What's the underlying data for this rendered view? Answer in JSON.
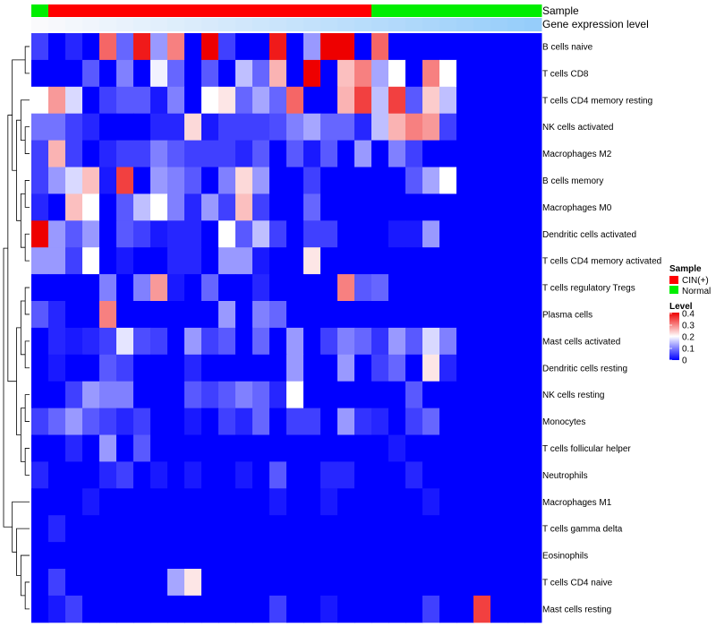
{
  "chart_data": {
    "type": "heatmap",
    "annotation_labels": [
      "Sample",
      "Gene expression level"
    ],
    "legend_sample": {
      "title": "Sample",
      "entries": [
        {
          "label": "CIN(+)",
          "color": "#ff0000"
        },
        {
          "label": "Normal",
          "color": "#00ee00"
        }
      ]
    },
    "legend_level": {
      "title": "Level",
      "ticks": [
        "0.4",
        "0.3",
        "0.2",
        "0.1",
        "0"
      ],
      "range": [
        0,
        0.4
      ],
      "colors": {
        "low": "#0000ff",
        "mid": "#ffffff",
        "high": "#ee0000"
      }
    },
    "sample_groups": [
      "Normal",
      "CIN(+)",
      "CIN(+)",
      "CIN(+)",
      "CIN(+)",
      "CIN(+)",
      "CIN(+)",
      "CIN(+)",
      "CIN(+)",
      "CIN(+)",
      "CIN(+)",
      "CIN(+)",
      "CIN(+)",
      "CIN(+)",
      "CIN(+)",
      "CIN(+)",
      "CIN(+)",
      "CIN(+)",
      "CIN(+)",
      "CIN(+)",
      "Normal",
      "Normal",
      "Normal",
      "Normal",
      "Normal",
      "Normal",
      "Normal",
      "Normal",
      "Normal",
      "Normal"
    ],
    "rows": [
      "B cells naive",
      "T cells CD8",
      "T cells CD4 memory resting",
      "NK cells activated",
      "Macrophages M2",
      "B cells memory",
      "Macrophages M0",
      "Dendritic cells activated",
      "T cells CD4 memory activated",
      "T cells regulatory  Tregs",
      "Plasma cells",
      "Mast cells activated",
      "Dendritic cells resting",
      "NK cells resting",
      "Monocytes",
      "T cells follicular helper",
      "Neutrophils",
      "Macrophages M1",
      "T cells gamma delta",
      "Eosinophils",
      "T cells CD4 naive",
      "Mast cells resting"
    ],
    "values": [
      [
        0.05,
        0.0,
        0.03,
        0.0,
        0.32,
        0.08,
        0.38,
        0.12,
        0.3,
        0.0,
        0.4,
        0.05,
        0.0,
        0.0,
        0.38,
        0.0,
        0.12,
        0.4,
        0.4,
        0.0,
        0.32,
        0.0,
        0.0,
        0.0,
        0.0,
        0.0,
        0.0,
        0.0,
        0.0,
        0.0
      ],
      [
        0.0,
        0.0,
        0.0,
        0.07,
        0.0,
        0.1,
        0.0,
        0.19,
        0.08,
        0.0,
        0.07,
        0.0,
        0.15,
        0.08,
        0.26,
        0.0,
        0.4,
        0.0,
        0.25,
        0.3,
        0.13,
        0.2,
        0.0,
        0.3,
        0.2,
        0.0,
        0.0,
        0.0,
        0.0,
        0.0
      ],
      [
        0.2,
        0.28,
        0.17,
        0.0,
        0.05,
        0.07,
        0.07,
        0.02,
        0.1,
        0.0,
        0.2,
        0.22,
        0.08,
        0.13,
        0.08,
        0.32,
        0.0,
        0.0,
        0.26,
        0.35,
        0.15,
        0.35,
        0.07,
        0.24,
        0.15,
        0.0,
        0.0,
        0.0,
        0.0,
        0.0
      ],
      [
        0.09,
        0.09,
        0.05,
        0.03,
        0.0,
        0.0,
        0.0,
        0.03,
        0.03,
        0.23,
        0.02,
        0.05,
        0.05,
        0.05,
        0.06,
        0.1,
        0.13,
        0.08,
        0.08,
        0.03,
        0.15,
        0.26,
        0.3,
        0.28,
        0.05,
        0.0,
        0.0,
        0.0,
        0.0,
        0.0
      ],
      [
        0.05,
        0.26,
        0.05,
        0.0,
        0.03,
        0.05,
        0.05,
        0.1,
        0.07,
        0.05,
        0.05,
        0.05,
        0.03,
        0.07,
        0.0,
        0.07,
        0.02,
        0.07,
        0.0,
        0.12,
        0.0,
        0.1,
        0.05,
        0.0,
        0.0,
        0.0,
        0.0,
        0.0,
        0.0,
        0.0
      ],
      [
        0.05,
        0.12,
        0.17,
        0.25,
        0.02,
        0.35,
        0.0,
        0.12,
        0.1,
        0.07,
        0.0,
        0.1,
        0.23,
        0.12,
        0.0,
        0.0,
        0.05,
        0.0,
        0.0,
        0.0,
        0.0,
        0.0,
        0.07,
        0.13,
        0.2,
        0.0,
        0.0,
        0.0,
        0.0,
        0.0
      ],
      [
        0.03,
        0.0,
        0.25,
        0.2,
        0.0,
        0.07,
        0.15,
        0.2,
        0.1,
        0.03,
        0.12,
        0.05,
        0.25,
        0.05,
        0.0,
        0.0,
        0.08,
        0.0,
        0.0,
        0.0,
        0.0,
        0.0,
        0.0,
        0.0,
        0.0,
        0.0,
        0.0,
        0.0,
        0.0,
        0.0
      ],
      [
        0.4,
        0.12,
        0.07,
        0.12,
        0.0,
        0.07,
        0.05,
        0.02,
        0.03,
        0.03,
        0.0,
        0.2,
        0.07,
        0.15,
        0.05,
        0.0,
        0.05,
        0.05,
        0.0,
        0.0,
        0.0,
        0.02,
        0.02,
        0.12,
        0.0,
        0.0,
        0.0,
        0.0,
        0.0,
        0.0
      ],
      [
        0.12,
        0.12,
        0.05,
        0.2,
        0.0,
        0.02,
        0.0,
        0.0,
        0.03,
        0.03,
        0.0,
        0.12,
        0.12,
        0.02,
        0.0,
        0.0,
        0.22,
        0.0,
        0.0,
        0.0,
        0.0,
        0.0,
        0.0,
        0.0,
        0.0,
        0.0,
        0.0,
        0.0,
        0.0,
        0.0
      ],
      [
        0.0,
        0.0,
        0.0,
        0.0,
        0.1,
        0.0,
        0.1,
        0.28,
        0.02,
        0.0,
        0.08,
        0.0,
        0.0,
        0.03,
        0.0,
        0.0,
        0.0,
        0.0,
        0.3,
        0.07,
        0.08,
        0.0,
        0.0,
        0.0,
        0.0,
        0.0,
        0.0,
        0.0,
        0.0,
        0.0
      ],
      [
        0.07,
        0.03,
        0.0,
        0.0,
        0.3,
        0.0,
        0.0,
        0.0,
        0.0,
        0.0,
        0.0,
        0.12,
        0.0,
        0.1,
        0.08,
        0.0,
        0.0,
        0.0,
        0.0,
        0.0,
        0.0,
        0.0,
        0.0,
        0.0,
        0.0,
        0.0,
        0.0,
        0.0,
        0.0,
        0.0
      ],
      [
        0.0,
        0.03,
        0.02,
        0.03,
        0.05,
        0.18,
        0.06,
        0.05,
        0.0,
        0.12,
        0.05,
        0.07,
        0.0,
        0.08,
        0.0,
        0.12,
        0.0,
        0.05,
        0.1,
        0.08,
        0.04,
        0.12,
        0.07,
        0.17,
        0.1,
        0.0,
        0.0,
        0.0,
        0.0,
        0.0
      ],
      [
        0.0,
        0.02,
        0.0,
        0.0,
        0.07,
        0.05,
        0.0,
        0.0,
        0.0,
        0.03,
        0.0,
        0.0,
        0.0,
        0.0,
        0.0,
        0.12,
        0.0,
        0.0,
        0.12,
        0.0,
        0.05,
        0.08,
        0.0,
        0.22,
        0.03,
        0.0,
        0.0,
        0.0,
        0.0,
        0.0
      ],
      [
        0.0,
        0.0,
        0.05,
        0.12,
        0.1,
        0.1,
        0.0,
        0.0,
        0.0,
        0.07,
        0.05,
        0.07,
        0.1,
        0.08,
        0.03,
        0.2,
        0.0,
        0.0,
        0.0,
        0.0,
        0.0,
        0.0,
        0.07,
        0.0,
        0.0,
        0.0,
        0.0,
        0.0,
        0.0,
        0.0
      ],
      [
        0.05,
        0.08,
        0.12,
        0.07,
        0.05,
        0.03,
        0.05,
        0.0,
        0.0,
        0.02,
        0.0,
        0.05,
        0.03,
        0.08,
        0.0,
        0.05,
        0.05,
        0.0,
        0.12,
        0.04,
        0.03,
        0.0,
        0.05,
        0.08,
        0.0,
        0.0,
        0.0,
        0.0,
        0.0,
        0.0
      ],
      [
        0.0,
        0.0,
        0.03,
        0.0,
        0.12,
        0.0,
        0.07,
        0.0,
        0.0,
        0.0,
        0.0,
        0.0,
        0.0,
        0.0,
        0.0,
        0.0,
        0.0,
        0.0,
        0.0,
        0.0,
        0.0,
        0.02,
        0.0,
        0.0,
        0.0,
        0.0,
        0.0,
        0.0,
        0.0,
        0.0
      ],
      [
        0.03,
        0.0,
        0.0,
        0.0,
        0.03,
        0.05,
        0.0,
        0.02,
        0.0,
        0.02,
        0.0,
        0.0,
        0.02,
        0.0,
        0.07,
        0.0,
        0.0,
        0.03,
        0.03,
        0.0,
        0.0,
        0.0,
        0.03,
        0.0,
        0.0,
        0.0,
        0.0,
        0.0,
        0.0,
        0.0
      ],
      [
        0.0,
        0.0,
        0.0,
        0.02,
        0.0,
        0.0,
        0.0,
        0.0,
        0.0,
        0.0,
        0.0,
        0.0,
        0.0,
        0.0,
        0.02,
        0.0,
        0.0,
        0.02,
        0.0,
        0.0,
        0.0,
        0.0,
        0.0,
        0.02,
        0.0,
        0.0,
        0.0,
        0.0,
        0.0,
        0.0
      ],
      [
        0.0,
        0.03,
        0.0,
        0.0,
        0.0,
        0.0,
        0.0,
        0.0,
        0.0,
        0.0,
        0.0,
        0.0,
        0.0,
        0.0,
        0.0,
        0.0,
        0.0,
        0.0,
        0.0,
        0.0,
        0.0,
        0.0,
        0.0,
        0.0,
        0.0,
        0.0,
        0.0,
        0.0,
        0.0,
        0.0
      ],
      [
        0.0,
        0.0,
        0.0,
        0.0,
        0.0,
        0.0,
        0.0,
        0.0,
        0.0,
        0.0,
        0.0,
        0.0,
        0.0,
        0.0,
        0.0,
        0.0,
        0.0,
        0.0,
        0.0,
        0.0,
        0.0,
        0.0,
        0.0,
        0.0,
        0.0,
        0.0,
        0.0,
        0.0,
        0.0,
        0.0
      ],
      [
        0.0,
        0.05,
        0.0,
        0.0,
        0.0,
        0.0,
        0.0,
        0.0,
        0.13,
        0.22,
        0.0,
        0.0,
        0.0,
        0.0,
        0.0,
        0.0,
        0.0,
        0.0,
        0.0,
        0.0,
        0.0,
        0.0,
        0.0,
        0.0,
        0.0,
        0.0,
        0.0,
        0.0,
        0.0,
        0.0
      ],
      [
        0.0,
        0.02,
        0.05,
        0.0,
        0.0,
        0.0,
        0.0,
        0.0,
        0.0,
        0.0,
        0.0,
        0.0,
        0.0,
        0.0,
        0.05,
        0.0,
        0.0,
        0.02,
        0.0,
        0.0,
        0.0,
        0.0,
        0.0,
        0.05,
        0.0,
        0.0,
        0.35,
        0.0,
        0.0,
        0.0
      ]
    ]
  }
}
